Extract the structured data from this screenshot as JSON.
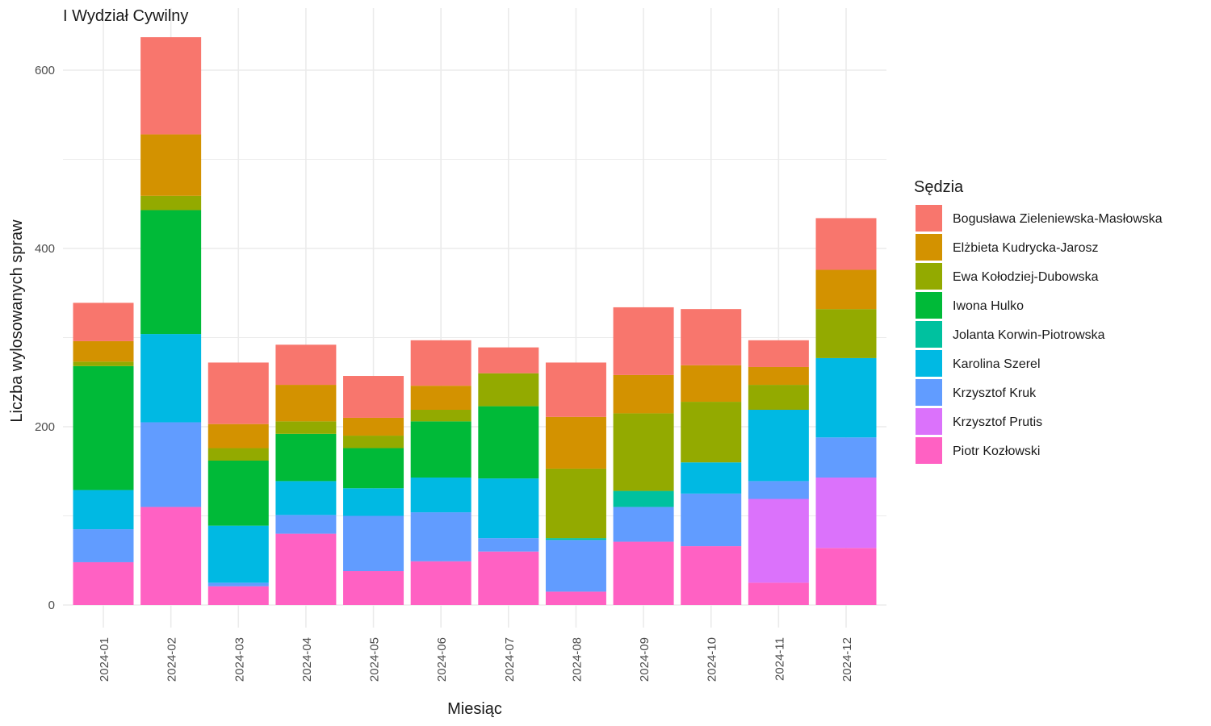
{
  "chart_data": {
    "type": "bar",
    "stacked": true,
    "title": "I Wydział Cywilny",
    "xlabel": "Miesiąc",
    "ylabel": "Liczba wylosowanych spraw",
    "ylim": [
      -25,
      660
    ],
    "yticks": [
      0,
      200,
      400,
      600
    ],
    "grid": true,
    "legend_title": "Sędzia",
    "legend_position": "right",
    "categories": [
      "2024-01",
      "2024-02",
      "2024-03",
      "2024-04",
      "2024-05",
      "2024-06",
      "2024-07",
      "2024-08",
      "2024-09",
      "2024-10",
      "2024-11",
      "2024-12"
    ],
    "series": [
      {
        "name": "Piotr Kozłowski",
        "color": "#FF61C3",
        "values": [
          48,
          110,
          21,
          80,
          38,
          49,
          60,
          15,
          71,
          66,
          25,
          64
        ]
      },
      {
        "name": "Krzysztof Prutis",
        "color": "#DB72FB",
        "values": [
          0,
          0,
          0,
          0,
          0,
          0,
          0,
          0,
          0,
          0,
          94,
          79
        ]
      },
      {
        "name": "Krzysztof Kruk",
        "color": "#619CFF",
        "values": [
          37,
          95,
          4,
          21,
          62,
          55,
          15,
          58,
          39,
          59,
          20,
          45
        ]
      },
      {
        "name": "Karolina Szerel",
        "color": "#00B9E3",
        "values": [
          44,
          99,
          64,
          38,
          31,
          39,
          67,
          0,
          0,
          35,
          80,
          89
        ]
      },
      {
        "name": "Jolanta Korwin-Piotrowska",
        "color": "#00C19F",
        "values": [
          0,
          0,
          0,
          0,
          0,
          0,
          0,
          2,
          18,
          0,
          0,
          0
        ]
      },
      {
        "name": "Iwona Hulko",
        "color": "#00BA38",
        "values": [
          139,
          139,
          73,
          53,
          45,
          63,
          81,
          0,
          0,
          0,
          0,
          0
        ]
      },
      {
        "name": "Ewa Kołodziej-Dubowska",
        "color": "#93AA00",
        "values": [
          5,
          16,
          14,
          14,
          14,
          13,
          37,
          78,
          87,
          68,
          28,
          55
        ]
      },
      {
        "name": "Elżbieta Kudrycka-Jarosz",
        "color": "#D39200",
        "values": [
          23,
          69,
          27,
          41,
          20,
          27,
          0,
          58,
          43,
          41,
          20,
          44
        ]
      },
      {
        "name": "Bogusława Zieleniewska-Masłowska",
        "color": "#F8766D",
        "values": [
          43,
          109,
          69,
          45,
          47,
          51,
          29,
          61,
          76,
          63,
          30,
          58
        ]
      }
    ]
  }
}
